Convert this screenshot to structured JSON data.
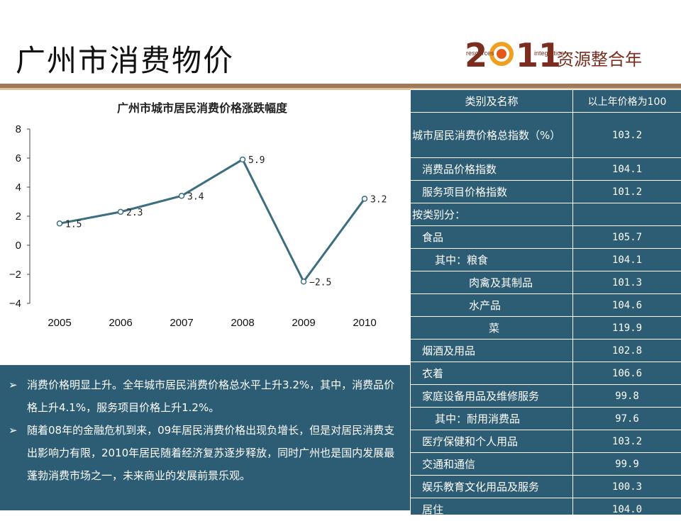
{
  "page": {
    "title": "广州市消费物价",
    "logo": {
      "year": "2011",
      "small_left": "resources",
      "small_right": "integration",
      "tagline": "资源整合年"
    }
  },
  "chart_data": {
    "type": "line",
    "title": "广州市城市居民消费价格涨跌幅度",
    "categories": [
      "2005",
      "2006",
      "2007",
      "2008",
      "2009",
      "2010"
    ],
    "series": [
      {
        "values": [
          1.5,
          2.3,
          3.4,
          5.9,
          -2.5,
          3.2
        ]
      }
    ],
    "data_labels": [
      "1.5",
      "2.3",
      "3.4",
      "5.9",
      "−2.5",
      "3.2"
    ],
    "ylim": [
      -4,
      8
    ],
    "yticks": [
      "8",
      "6",
      "4",
      "2",
      "0",
      "−2",
      "−4"
    ],
    "ytick_values": [
      8,
      6,
      4,
      2,
      0,
      -2,
      -4
    ],
    "grid": false,
    "colors": {
      "line": "#3c6e80",
      "marker_fill": "#ffffff",
      "marker_edge": "#3c6e80"
    }
  },
  "notes": [
    {
      "parts": [
        {
          "text": "消费价格明显上升。全年城市居民消费价格总水平上升3.2%，其中，消费品价格上升4.1%，服务项目价格上升1.2%。",
          "highlight": false
        }
      ]
    },
    {
      "parts": [
        {
          "text": "随着08年的金融危机到来，09年居民消费价格出现负增长，但是对居民消费支出影响力有限，2010年居民随着经济复苏逐步释放，同时广州也是国内发展最蓬勃消费市场之一，未来商业的发展前景乐观。",
          "highlight": false
        }
      ]
    }
  ],
  "table": {
    "headers": [
      "类别及名称",
      "以上年价格为100"
    ],
    "rows": [
      {
        "name": "城市居民消费价格总指数（%）",
        "value": "103.2",
        "indent": 0,
        "tall": true
      },
      {
        "name": "消费品价格指数",
        "value": "104.1",
        "indent": 1
      },
      {
        "name": "服务项目价格指数",
        "value": "101.2",
        "indent": 1
      },
      {
        "name": "按类别分：",
        "value": "",
        "indent": 0
      },
      {
        "name": "食品",
        "value": "105.7",
        "indent": 1
      },
      {
        "name": "其中：粮食",
        "value": "104.1",
        "indent": 2
      },
      {
        "name": "肉禽及其制品",
        "value": "101.3",
        "indent": 3
      },
      {
        "name": "水产品",
        "value": "104.6",
        "indent": 3
      },
      {
        "name": "菜",
        "value": "119.9",
        "indent": 4
      },
      {
        "name": "烟酒及用品",
        "value": "102.8",
        "indent": 1
      },
      {
        "name": "衣着",
        "value": "106.6",
        "indent": 1
      },
      {
        "name": "家庭设备用品及维修服务",
        "value": "99.8",
        "indent": 1
      },
      {
        "name": "其中：耐用消费品",
        "value": "97.6",
        "indent": 2
      },
      {
        "name": "医疗保健和个人用品",
        "value": "103.2",
        "indent": 1
      },
      {
        "name": "交通和通信",
        "value": "99.9",
        "indent": 1
      },
      {
        "name": "娱乐教育文化用品及服务",
        "value": "100.3",
        "indent": 1
      },
      {
        "name": "居住",
        "value": "104.0",
        "indent": 1
      }
    ]
  }
}
